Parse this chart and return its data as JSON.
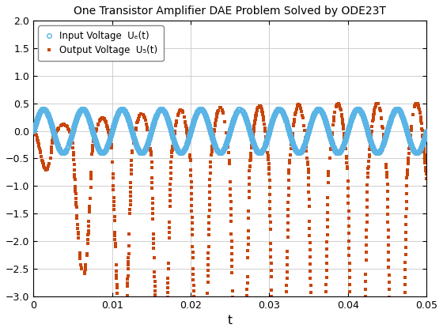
{
  "title": "One Transistor Amplifier DAE Problem Solved by ODE23T",
  "xlabel": "t",
  "ylabel": "",
  "xlim": [
    0,
    0.05
  ],
  "ylim": [
    -3,
    2
  ],
  "yticks": [
    -3,
    -2.5,
    -2,
    -1.5,
    -1,
    -0.5,
    0,
    0.5,
    1,
    1.5,
    2
  ],
  "xticks": [
    0,
    0.01,
    0.02,
    0.03,
    0.04,
    0.05
  ],
  "input_color": "#5ab4e5",
  "output_color": "#c8450a",
  "input_label": "Input Voltage  Uₑ(t)",
  "output_label": "Output Voltage  U₅(t)",
  "freq": 200,
  "amp_input": 0.4,
  "background_color": "#ffffff"
}
